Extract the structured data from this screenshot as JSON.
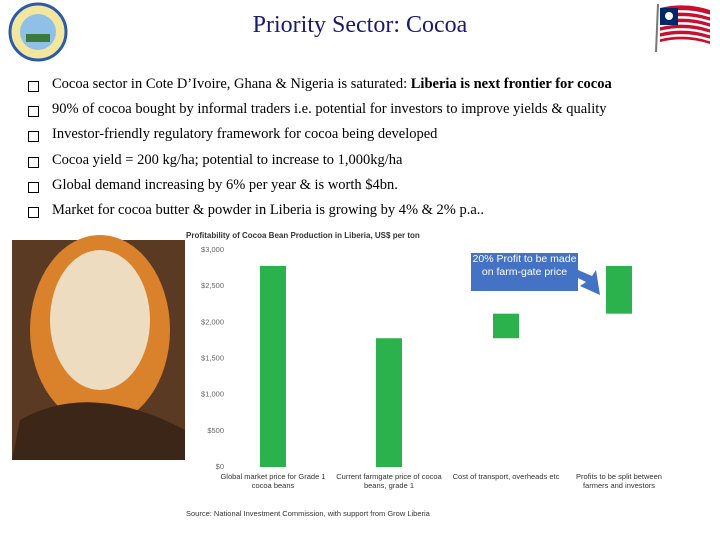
{
  "header": {
    "title": "Priority Sector: Cocoa"
  },
  "bullets": [
    {
      "text": "Cocoa sector in Cote D’Ivoire, Ghana & Nigeria is saturated:",
      "bold": "Liberia is next frontier for cocoa"
    },
    {
      "text": "90% of cocoa bought by informal traders i.e. potential for investors to improve yields & quality"
    },
    {
      "text": "Investor-friendly regulatory framework for cocoa being developed"
    },
    {
      "text": "Cocoa yield = 200 kg/ha; potential to increase to 1,000kg/ha"
    },
    {
      "text": "Global demand increasing by 6% per year & is worth $4bn."
    },
    {
      "text": "Market for cocoa butter & powder in Liberia is growing by 4% & 2% p.a.."
    }
  ],
  "chart_data": {
    "type": "waterfall",
    "title": "Profitability of Cocoa Bean Production in Liberia, US$ per ton",
    "categories": [
      "Global market price for Grade 1 cocoa beans",
      "Current farmgate price of cocoa beans, grade 1",
      "Cost of transport, overheads etc",
      "Profits to be split between farmers and investors"
    ],
    "values": [
      2780,
      1780,
      340,
      660
    ],
    "measure": [
      "absolute",
      "absolute",
      "relative",
      "relative"
    ],
    "color": "#2bb24c",
    "ylim": [
      0,
      3000
    ],
    "yticks": [
      {
        "value": 0,
        "label": "$0"
      },
      {
        "value": 500,
        "label": "$500"
      },
      {
        "value": 1000,
        "label": "$1,000"
      },
      {
        "value": 1500,
        "label": "$1,500"
      },
      {
        "value": 2000,
        "label": "$2,000"
      },
      {
        "value": 2500,
        "label": "$2,500"
      },
      {
        "value": 3000,
        "label": "$3,000"
      }
    ],
    "annotation": "20% Profit to be made on farm-gate price",
    "source": "Source: National Investment Commission, with support from Grow Liberia"
  }
}
